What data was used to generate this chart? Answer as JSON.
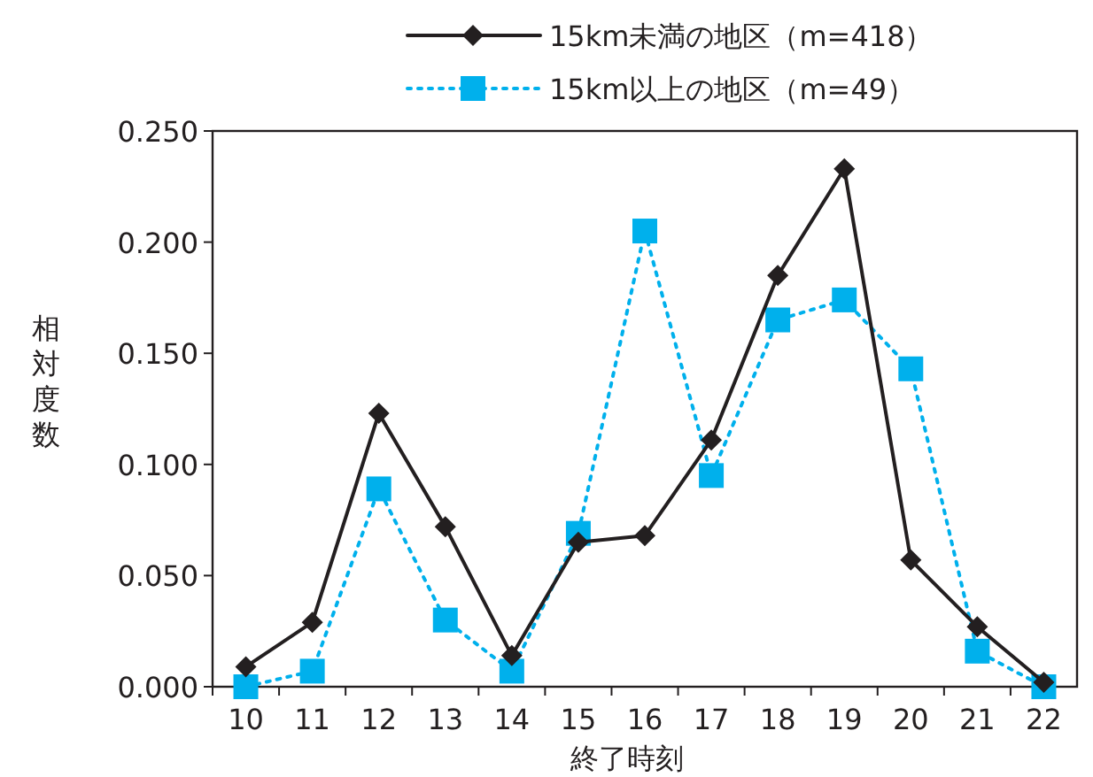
{
  "chart_data": {
    "type": "line",
    "xlabel": "終了時刻",
    "ylabel": "相対度数",
    "categories": [
      "10",
      "11",
      "12",
      "13",
      "14",
      "15",
      "16",
      "17",
      "18",
      "19",
      "20",
      "21",
      "22"
    ],
    "series": [
      {
        "name": "15km未満の地区（m=418）",
        "color": "#231f20",
        "marker": "diamond",
        "line_style": "solid",
        "values": [
          0.009,
          0.029,
          0.123,
          0.072,
          0.014,
          0.065,
          0.068,
          0.111,
          0.185,
          0.233,
          0.057,
          0.027,
          0.002
        ]
      },
      {
        "name": "15km以上の地区（m=49）",
        "color": "#00b0ec",
        "marker": "square",
        "line_style": "dotted",
        "values": [
          0.0,
          0.007,
          0.089,
          0.03,
          0.007,
          0.069,
          0.205,
          0.095,
          0.165,
          0.174,
          0.143,
          0.016,
          0.0
        ]
      }
    ],
    "ylim": [
      0,
      0.25
    ],
    "yticks": [
      {
        "value": 0,
        "label": "0.000"
      },
      {
        "value": 0.05,
        "label": "0.050"
      },
      {
        "value": 0.1,
        "label": "0.100"
      },
      {
        "value": 0.15,
        "label": "0.150"
      },
      {
        "value": 0.2,
        "label": "0.200"
      },
      {
        "value": 0.25,
        "label": "0.250"
      }
    ],
    "grid": false,
    "legend": "top"
  }
}
